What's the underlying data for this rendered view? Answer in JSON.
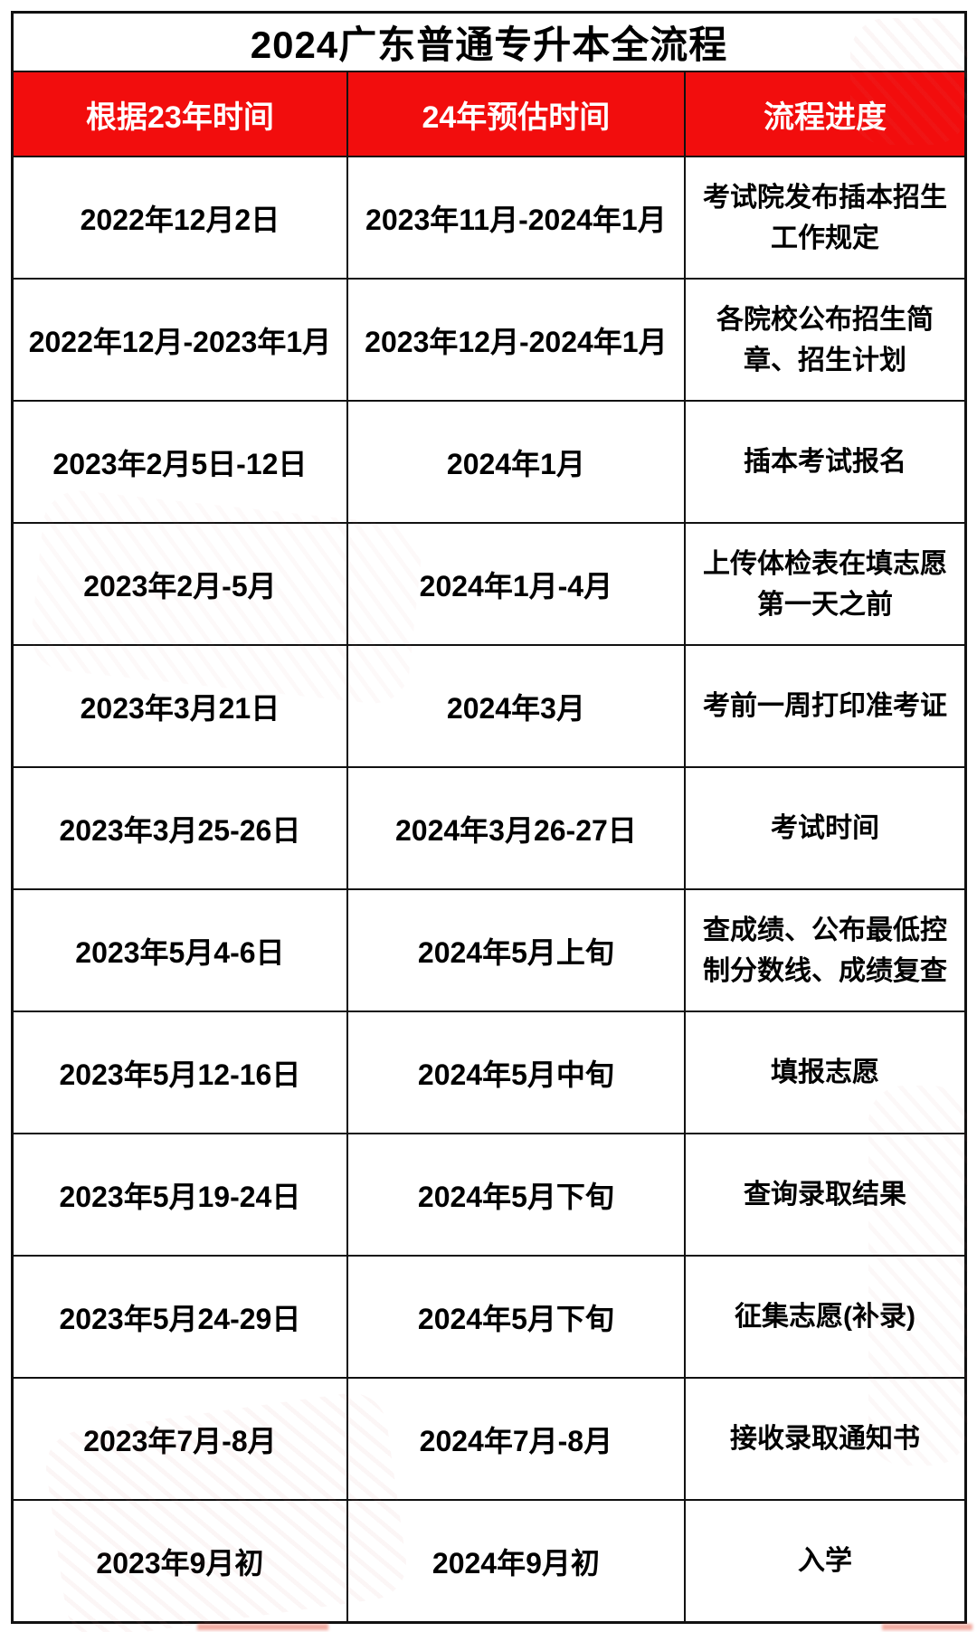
{
  "title": "2024广东普通专升本全流程",
  "table": {
    "headers": [
      "根据23年时间",
      "24年预估时间",
      "流程进度"
    ],
    "rows": [
      [
        "2022年12月2日",
        "2023年11月-2024年1月",
        "考试院发布插本招生工作规定"
      ],
      [
        "2022年12月-2023年1月",
        "2023年12月-2024年1月",
        "各院校公布招生简章、招生计划"
      ],
      [
        "2023年2月5日-12日",
        "2024年1月",
        "插本考试报名"
      ],
      [
        "2023年2月-5月",
        "2024年1月-4月",
        "上传体检表在填志愿第一天之前"
      ],
      [
        "2023年3月21日",
        "2024年3月",
        "考前一周打印准考证"
      ],
      [
        "2023年3月25-26日",
        "2024年3月26-27日",
        "考试时间"
      ],
      [
        "2023年5月4-6日",
        "2024年5月上旬",
        "查成绩、公布最低控制分数线、成绩复查"
      ],
      [
        "2023年5月12-16日",
        "2024年5月中旬",
        "填报志愿"
      ],
      [
        "2023年5月19-24日",
        "2024年5月下旬",
        "查询录取结果"
      ],
      [
        "2023年5月24-29日",
        "2024年5月下旬",
        "征集志愿(补录)"
      ],
      [
        "2023年7月-8月",
        "2024年7月-8月",
        "接收录取通知书"
      ],
      [
        "2023年9月初",
        "2024年9月初",
        "入学"
      ]
    ]
  },
  "colors": {
    "header_background": "#F20D0D",
    "header_text": "#FFFFFF",
    "body_text": "#000000",
    "border": "#111111",
    "page_background": "#FFFFFF"
  }
}
